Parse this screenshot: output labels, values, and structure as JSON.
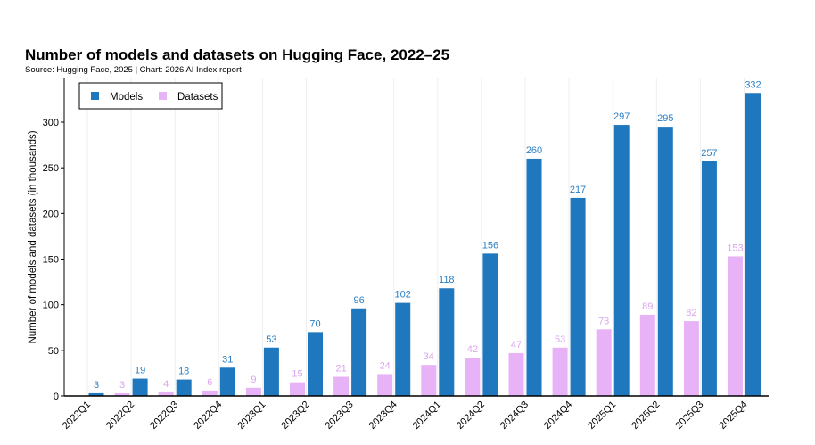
{
  "chart_data": {
    "type": "bar",
    "title": "Number of models and datasets on Hugging Face, 2022–25",
    "subtitle": "Source: Hugging Face, 2025 | Chart: 2026 AI Index report",
    "xlabel": "",
    "ylabel": "Number of models and datasets (in thousands)",
    "ylim": [
      0,
      320
    ],
    "yticks": [
      0,
      50,
      100,
      150,
      200,
      250,
      300
    ],
    "grid": true,
    "legend_position": "top-left",
    "categories": [
      "2022Q1",
      "2022Q2",
      "2022Q3",
      "2022Q4",
      "2023Q1",
      "2023Q2",
      "2023Q3",
      "2023Q4",
      "2024Q1",
      "2024Q2",
      "2024Q3",
      "2024Q4",
      "2025Q1",
      "2025Q2",
      "2025Q3",
      "2025Q4"
    ],
    "series": [
      {
        "name": "Models",
        "color": "#1f77bd",
        "label_color": "#2a7fc4",
        "values": [
          3,
          19,
          18,
          31,
          53,
          70,
          96,
          102,
          118,
          156,
          260,
          217,
          297,
          295,
          257,
          332
        ]
      },
      {
        "name": "Datasets",
        "color": "#e8b2f7",
        "label_color": "#dba4ee",
        "values": [
          null,
          3,
          4,
          6,
          9,
          15,
          21,
          24,
          34,
          42,
          47,
          53,
          73,
          89,
          82,
          153
        ]
      }
    ]
  }
}
